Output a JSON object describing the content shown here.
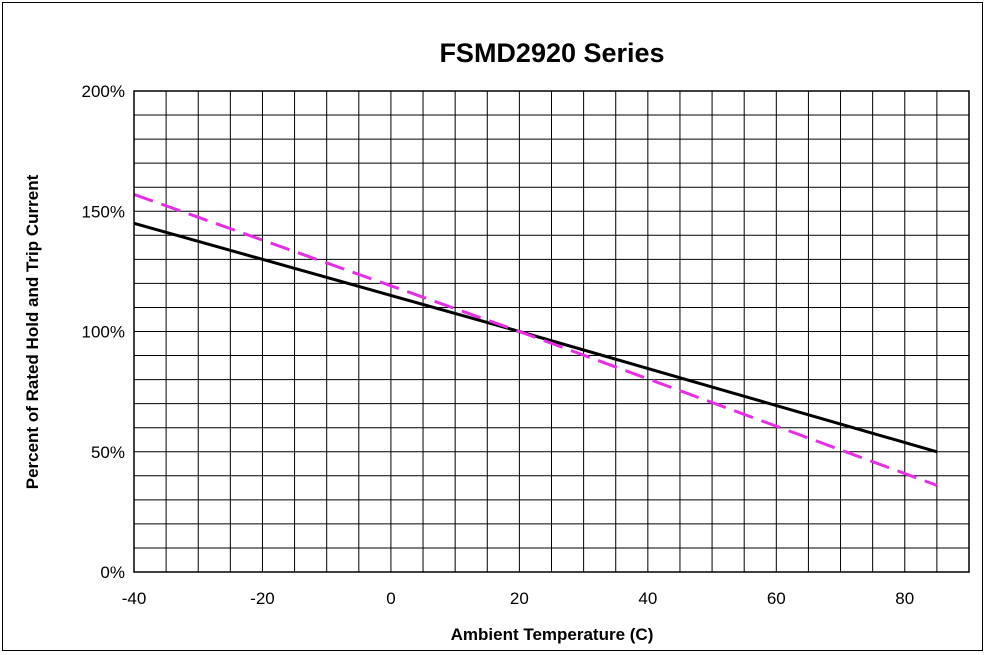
{
  "chart_data": {
    "type": "line",
    "title": "FSMD2920 Series",
    "xlabel": "Ambient Temperature (C)",
    "ylabel": "Percent of Rated Hold  and Trip Current",
    "xlim": [
      -40,
      90
    ],
    "ylim": [
      0,
      200
    ],
    "x_ticks": [
      -40,
      -20,
      0,
      20,
      40,
      60,
      80
    ],
    "x_tick_labels": [
      "-40",
      "-20",
      "0",
      "20",
      "40",
      "60",
      "80"
    ],
    "y_ticks": [
      0,
      50,
      100,
      150,
      200
    ],
    "y_tick_labels": [
      "0%",
      "50%",
      "100%",
      "150%",
      "200%"
    ],
    "x_grid_step": 5,
    "y_grid_step": 10,
    "grid": true,
    "legend": "none",
    "series": [
      {
        "color": "#000000",
        "style": "solid",
        "x": [
          -40,
          20,
          85
        ],
        "y": [
          145,
          100,
          50
        ]
      },
      {
        "color": "#e62ee6",
        "style": "dashed",
        "x": [
          -40,
          20,
          85
        ],
        "y": [
          157,
          100,
          36
        ]
      }
    ]
  }
}
